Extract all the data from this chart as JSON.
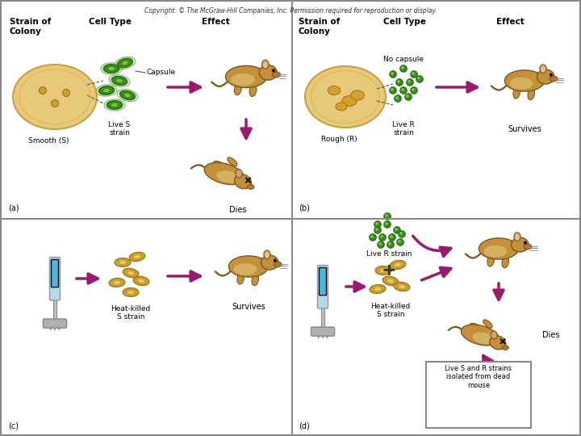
{
  "copyright_text": "Copyright: © The McGraw-Hill Companies, Inc. Permission required for reproduction or display.",
  "bg_color": "#ffffff",
  "arrow_color": "#9b1a6e",
  "panel_a": {
    "label": "(a)",
    "strain_of_colony": "Strain of\nColony",
    "cell_type": "Cell Type",
    "effect": "Effect",
    "colony_label": "Smooth (S)",
    "cell_label": "Live S\nstrain",
    "capsule_label": "Capsule",
    "result_label": "Dies"
  },
  "panel_b": {
    "label": "(b)",
    "strain_of_colony": "Strain of\nColony",
    "cell_type": "Cell Type",
    "effect": "Effect",
    "colony_label": "Rough (R)",
    "cell_label": "Live R\nstrain",
    "no_capsule_label": "No capsule",
    "result_label": "Survives"
  },
  "panel_c": {
    "label": "(c)",
    "cell_label": "Heat-killed\nS strain",
    "result_label": "Survives"
  },
  "panel_d": {
    "label": "(d)",
    "cell_label": "Heat-killed\nS strain",
    "live_r_label": "Live R strain",
    "result_label": "Dies",
    "box_label": "Live S and R strains\nisolated from dead\nmouse"
  }
}
